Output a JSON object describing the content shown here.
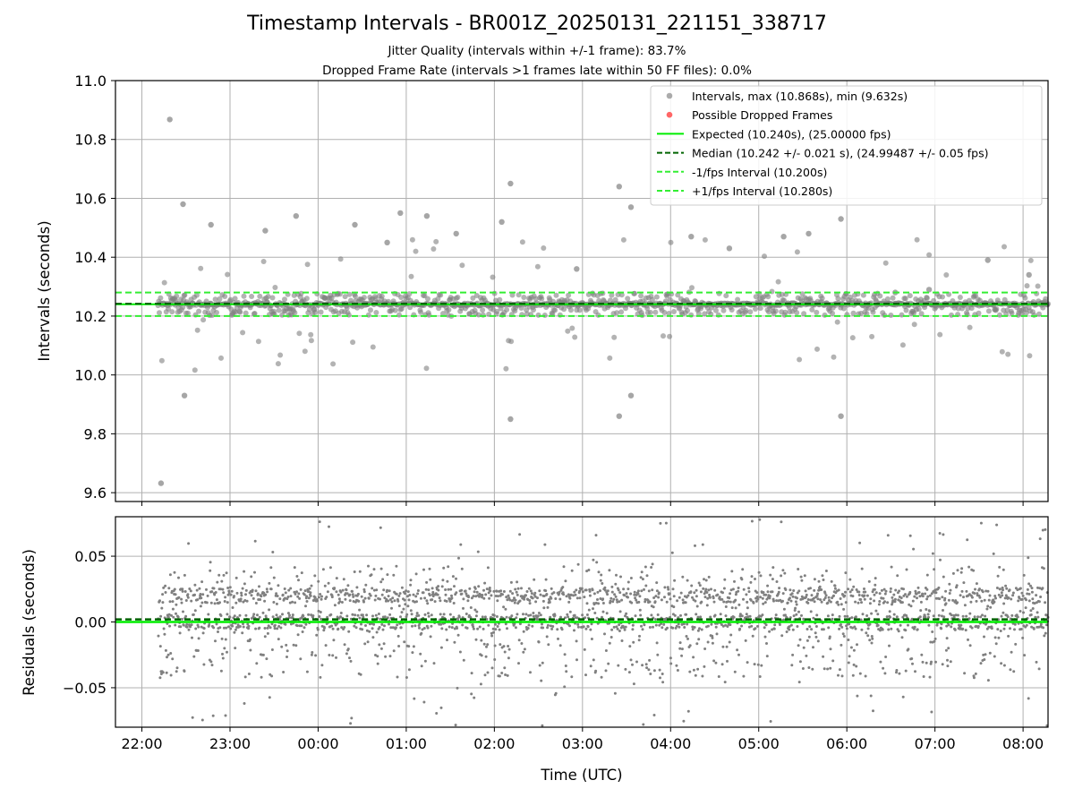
{
  "title": "Timestamp Intervals - BR001Z_20250131_221151_338717",
  "subtitle_1": "Jitter Quality (intervals within +/-1 frame): 83.7%",
  "subtitle_2": "Dropped Frame Rate (intervals >1 frames late within 50 FF files): 0.0%",
  "colors": {
    "points": "#808080",
    "dropped": "#ff6666",
    "expected": "#00ee00",
    "median": "#006400",
    "interval_lines": "#33ee33",
    "grid": "#b0b0b0"
  },
  "chart_data": [
    {
      "type": "scatter",
      "ylabel": "Intervals (seconds)",
      "ylim": [
        9.57,
        11.0
      ],
      "yticks": [
        "9.6",
        "9.8",
        "10.0",
        "10.2",
        "10.4",
        "10.6",
        "10.8",
        "11.0"
      ],
      "x_start": "21:42",
      "x_end": "08:17",
      "legend_position": "upper-right",
      "grid": true,
      "series": [
        {
          "name": "Intervals, max (10.868s), min (9.632s)",
          "kind": "points",
          "color": "#808080"
        },
        {
          "name": "Possible Dropped Frames",
          "kind": "points",
          "color": "#ff6666"
        }
      ],
      "reference_lines": [
        {
          "name": "Expected (10.240s), (25.00000 fps)",
          "value": 10.24,
          "style": "solid",
          "color": "#00ee00"
        },
        {
          "name": "Median (10.242 +/- 0.021 s), (24.99487 +/- 0.05 fps)",
          "value": 10.242,
          "style": "dashed",
          "color": "#006400"
        },
        {
          "name": "-1/fps Interval (10.200s)",
          "value": 10.2,
          "style": "dashed",
          "color": "#33ee33"
        },
        {
          "name": "+1/fps Interval (10.280s)",
          "value": 10.28,
          "style": "dashed",
          "color": "#33ee33"
        }
      ],
      "data_range": {
        "start": "22:11",
        "end": "08:17",
        "max": 10.868,
        "min": 9.632,
        "median": 10.242
      },
      "outliers": [
        {
          "time": "22:13",
          "value": 9.632
        },
        {
          "time": "22:19",
          "value": 10.868
        },
        {
          "time": "22:28",
          "value": 10.58
        },
        {
          "time": "22:29",
          "value": 9.93
        },
        {
          "time": "22:47",
          "value": 10.51
        },
        {
          "time": "23:24",
          "value": 10.49
        },
        {
          "time": "23:45",
          "value": 10.54
        },
        {
          "time": "00:25",
          "value": 10.51
        },
        {
          "time": "00:47",
          "value": 10.45
        },
        {
          "time": "00:56",
          "value": 10.55
        },
        {
          "time": "01:14",
          "value": 10.54
        },
        {
          "time": "01:34",
          "value": 10.48
        },
        {
          "time": "02:05",
          "value": 10.52
        },
        {
          "time": "02:11",
          "value": 10.65
        },
        {
          "time": "02:11",
          "value": 9.85
        },
        {
          "time": "02:56",
          "value": 10.36
        },
        {
          "time": "03:25",
          "value": 10.64
        },
        {
          "time": "03:25",
          "value": 9.86
        },
        {
          "time": "03:33",
          "value": 10.57
        },
        {
          "time": "03:33",
          "value": 9.93
        },
        {
          "time": "04:14",
          "value": 10.47
        },
        {
          "time": "04:40",
          "value": 10.43
        },
        {
          "time": "05:17",
          "value": 10.47
        },
        {
          "time": "05:34",
          "value": 10.48
        },
        {
          "time": "05:56",
          "value": 10.53
        },
        {
          "time": "05:56",
          "value": 9.86
        },
        {
          "time": "06:33",
          "value": 10.28
        },
        {
          "time": "06:56",
          "value": 10.29
        },
        {
          "time": "07:36",
          "value": 10.39
        },
        {
          "time": "08:04",
          "value": 10.34
        }
      ]
    },
    {
      "type": "scatter",
      "ylabel": "Residuals (seconds)",
      "xlabel": "Time (UTC)",
      "ylim": [
        -0.08,
        0.08
      ],
      "yticks": [
        "−0.05",
        "0.00",
        "0.05"
      ],
      "xticks": [
        "22:00",
        "23:00",
        "00:00",
        "01:00",
        "02:00",
        "03:00",
        "04:00",
        "05:00",
        "06:00",
        "07:00",
        "08:00"
      ],
      "grid": true,
      "series": [
        {
          "name": "Residuals",
          "color": "#808080"
        }
      ],
      "reference_lines": [
        {
          "value": 0.0,
          "style": "solid",
          "color": "#00ee00"
        },
        {
          "value": 0.002,
          "style": "dashed",
          "color": "#006400"
        }
      ],
      "data_range": {
        "start": "22:11",
        "end": "08:17",
        "typical_min": -0.05,
        "typical_max": 0.05
      }
    }
  ]
}
